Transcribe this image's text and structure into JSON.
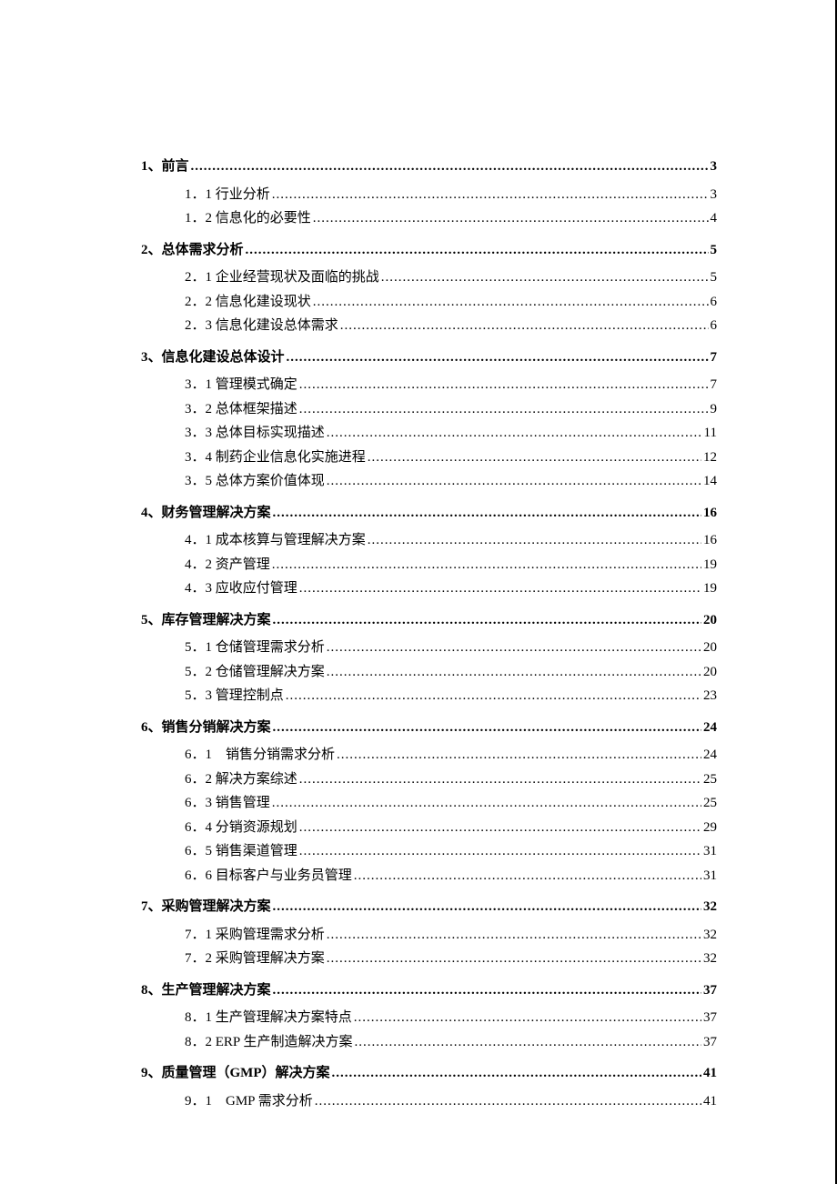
{
  "document": {
    "type": "table-of-contents",
    "font_family": "SimSun",
    "title_fontsize": 15,
    "sub_fontsize": 15,
    "text_color": "#000000",
    "background_color": "#ffffff",
    "border_right_color": "#000000"
  },
  "toc": [
    {
      "label": "1、前言",
      "page": "3",
      "level": 1,
      "items": [
        {
          "label": "1．1 行业分析",
          "page": "3"
        },
        {
          "label": "1．2 信息化的必要性",
          "page": "4"
        }
      ]
    },
    {
      "label": "2、总体需求分析",
      "page": "5",
      "level": 1,
      "items": [
        {
          "label": "2．1 企业经营现状及面临的挑战",
          "page": "5"
        },
        {
          "label": "2．2 信息化建设现状",
          "page": "6"
        },
        {
          "label": "2．3 信息化建设总体需求",
          "page": "6"
        }
      ]
    },
    {
      "label": "3、信息化建设总体设计",
      "page": "7",
      "level": 1,
      "items": [
        {
          "label": "3．1 管理模式确定",
          "page": "7"
        },
        {
          "label": "3．2 总体框架描述",
          "page": "9"
        },
        {
          "label": "3．3 总体目标实现描述",
          "page": "11"
        },
        {
          "label": "3．4 制药企业信息化实施进程",
          "page": "12"
        },
        {
          "label": "3．5 总体方案价值体现",
          "page": "14"
        }
      ]
    },
    {
      "label": "4、财务管理解决方案",
      "page": "16",
      "level": 1,
      "items": [
        {
          "label": "4．1 成本核算与管理解决方案",
          "page": "16"
        },
        {
          "label": "4．2 资产管理",
          "page": "19"
        },
        {
          "label": "4．3 应收应付管理",
          "page": "19"
        }
      ]
    },
    {
      "label": "5、库存管理解决方案",
      "page": "20",
      "level": 1,
      "items": [
        {
          "label": "5．1 仓储管理需求分析",
          "page": "20"
        },
        {
          "label": "5．2 仓储管理解决方案",
          "page": "20"
        },
        {
          "label": "5．3 管理控制点",
          "page": "23"
        }
      ]
    },
    {
      "label": "6、销售分销解决方案",
      "page": "24",
      "level": 1,
      "items": [
        {
          "label": "6．1　销售分销需求分析",
          "page": "24"
        },
        {
          "label": "6．2 解决方案综述",
          "page": "25"
        },
        {
          "label": "6．3 销售管理",
          "page": "25"
        },
        {
          "label": "6．4 分销资源规划",
          "page": "29"
        },
        {
          "label": "6．5  销售渠道管理",
          "page": "31"
        },
        {
          "label": "6．6 目标客户与业务员管理",
          "page": "31"
        }
      ]
    },
    {
      "label": "7、采购管理解决方案",
      "page": "32",
      "level": 1,
      "items": [
        {
          "label": "7．1 采购管理需求分析",
          "page": "32"
        },
        {
          "label": "7．2 采购管理解决方案",
          "page": "32"
        }
      ]
    },
    {
      "label": "8、生产管理解决方案",
      "page": "37",
      "level": 1,
      "items": [
        {
          "label": "8．1 生产管理解决方案特点",
          "page": "37"
        },
        {
          "label": "8．2 ERP 生产制造解决方案",
          "page": "37"
        }
      ]
    },
    {
      "label": "9、质量管理（GMP）解决方案",
      "page": "41",
      "level": 1,
      "items": [
        {
          "label": "9．1　GMP 需求分析",
          "page": "41"
        }
      ]
    }
  ]
}
